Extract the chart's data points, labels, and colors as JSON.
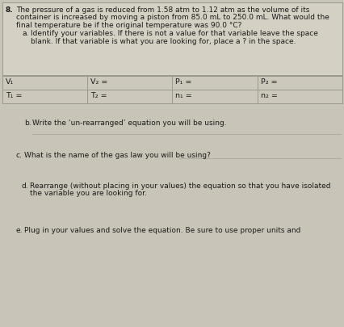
{
  "bg_color": "#c8c4b8",
  "header_bg": "#d4d0c4",
  "table_bg": "#ccc8bc",
  "question_number": "8.",
  "question_lines": [
    "The pressure of a gas is reduced from 1.58 atm to 1.12 atm as the volume of its",
    "container is increased by moving a piston from 85.0 mL to 250.0 mL. What would the",
    "final temperature be if the original temperature was 90.0 °C?"
  ],
  "part_a_label": "a.",
  "part_a_lines": [
    "Identify your variables. If there is not a value for that variable leave the space",
    "blank. If that variable is what you are looking for, place a ? in the space."
  ],
  "table_row1": [
    "V₁",
    "V₂ =",
    "P₁ =",
    "P₂ ="
  ],
  "table_row2": [
    "T₁ =",
    "T₂ =",
    "n₁ =",
    "n₂ ="
  ],
  "part_b_label": "b.",
  "part_b_text": "Write the ‘un-rearranged’ equation you will be using.",
  "part_c_label": "c.",
  "part_c_text": "What is the name of the gas law you will be using?",
  "part_d_label": "d.",
  "part_d_lines": [
    "Rearrange (without placing in your values) the equation so that you have isolated",
    "the variable you are looking for."
  ],
  "part_e_label": "e.",
  "part_e_text": "Plug in your values and solve the equation. Be sure to use proper units and",
  "fs_main": 6.5,
  "fs_table": 6.8,
  "text_color": "#1a1a1a",
  "border_color": "#999990",
  "line_color": "#aaa89a"
}
